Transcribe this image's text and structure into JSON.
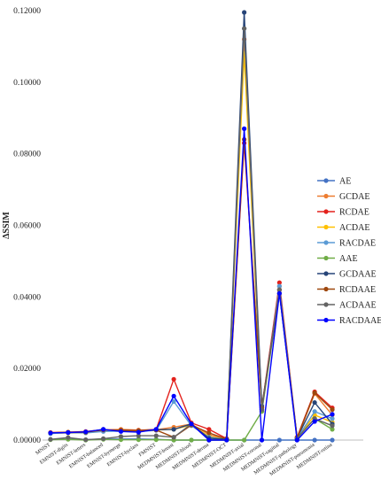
{
  "chart_data": {
    "type": "line",
    "ylabel": "ΔSSIM",
    "ylim": [
      0,
      0.12
    ],
    "yticks": [
      "0.00000",
      "0.02000",
      "0.04000",
      "0.06000",
      "0.08000",
      "0.10000",
      "0.12000"
    ],
    "grid": false,
    "legend_position": "right",
    "categories": [
      "MNIST",
      "EMNIST-digits",
      "EMNIST-letters",
      "EMNIST-balanced",
      "EMNIST-bymerge",
      "EMNIST-byclass",
      "FMNIST",
      "MEDMNIST-breast",
      "MEDMNIST-blood",
      "MEDMNIST-derma",
      "MEDMNIST-OCT",
      "MEDMNIST-axial",
      "MEDMNIST-coronal",
      "MEDMNIST-sagittal",
      "MEDMNIST-pathology",
      "MEDMNIST-pneumonia",
      "MEDMNIST-retina"
    ],
    "series": [
      {
        "name": "AE",
        "color": "#4472C4",
        "values": [
          0.0002,
          0.0003,
          0.0001,
          0.0003,
          0.0003,
          0.0003,
          0.0002,
          0.0,
          0.0,
          0.0,
          0.0,
          0.0,
          0.0,
          0.0,
          0.0,
          0.0,
          0.0
        ]
      },
      {
        "name": "GCDAE",
        "color": "#ED7D31",
        "values": [
          0.002,
          0.0022,
          0.0021,
          0.0028,
          0.003,
          0.0028,
          0.0029,
          0.0036,
          0.0045,
          0.0015,
          0.0003,
          0.112,
          0.0085,
          0.043,
          0.0005,
          0.013,
          0.007
        ]
      },
      {
        "name": "RCDAE",
        "color": "#E3211C",
        "values": [
          0.0021,
          0.0022,
          0.0024,
          0.0029,
          0.0028,
          0.0027,
          0.003,
          0.017,
          0.0048,
          0.003,
          0.0004,
          0.083,
          0.009,
          0.044,
          0.0008,
          0.0135,
          0.009
        ]
      },
      {
        "name": "ACDAE",
        "color": "#FFC000",
        "values": [
          0.0019,
          0.002,
          0.002,
          0.0026,
          0.0027,
          0.0026,
          0.0028,
          0.003,
          0.0042,
          0.001,
          0.0002,
          0.108,
          0.008,
          0.042,
          0.0005,
          0.007,
          0.005
        ]
      },
      {
        "name": "RACDAE",
        "color": "#5B9BD5",
        "values": [
          0.0018,
          0.0021,
          0.002,
          0.0024,
          0.0025,
          0.0024,
          0.0027,
          0.0108,
          0.004,
          0.0008,
          0.0002,
          0.115,
          0.0085,
          0.043,
          0.0005,
          0.008,
          0.006
        ]
      },
      {
        "name": "AAE",
        "color": "#70AD47",
        "values": [
          0.0001,
          0.0002,
          0.0,
          0.0002,
          0.0001,
          0.0001,
          0.0001,
          0.0,
          0.0,
          0.0,
          0.0,
          0.0,
          0.008,
          0.041,
          0.0005,
          0.006,
          0.003
        ]
      },
      {
        "name": "GCDAAE",
        "color": "#264478",
        "values": [
          0.002,
          0.0021,
          0.0022,
          0.003,
          0.0025,
          0.0026,
          0.0029,
          0.003,
          0.0045,
          0.0005,
          0.0003,
          0.1195,
          0.0095,
          0.041,
          0.0006,
          0.0105,
          0.0045
        ]
      },
      {
        "name": "RCDAAE",
        "color": "#9E480E",
        "values": [
          0.002,
          0.0022,
          0.0022,
          0.0028,
          0.0028,
          0.0026,
          0.0028,
          0.0008,
          0.0042,
          0.002,
          0.0003,
          0.084,
          0.009,
          0.042,
          0.0006,
          0.0132,
          0.0085
        ]
      },
      {
        "name": "ACDAAE",
        "color": "#636363",
        "values": [
          0.0002,
          0.0007,
          0.0001,
          0.0004,
          0.001,
          0.0012,
          0.0012,
          0.0008,
          0.0045,
          0.0,
          0.0001,
          0.115,
          0.0085,
          0.042,
          0.0005,
          0.006,
          0.004
        ]
      },
      {
        "name": "RACDAAE",
        "color": "#0000FF",
        "values": [
          0.002,
          0.0021,
          0.0023,
          0.003,
          0.0024,
          0.0022,
          0.003,
          0.0123,
          0.0045,
          0.0,
          0.0,
          0.087,
          0.0,
          0.041,
          0.0,
          0.0052,
          0.0072
        ]
      }
    ]
  }
}
